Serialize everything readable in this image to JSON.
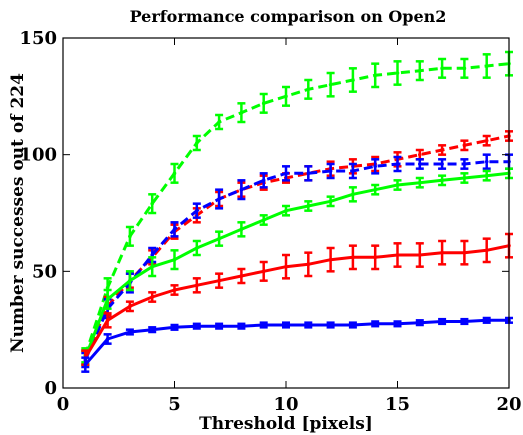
{
  "chart_data": {
    "type": "line",
    "title": "Performance comparison on Open2",
    "xlabel": "Threshold [pixels]",
    "ylabel": "Number successes out of 224",
    "xlim": [
      0,
      20
    ],
    "ylim": [
      0,
      150
    ],
    "xticks": [
      "0",
      "5",
      "10",
      "15",
      "20"
    ],
    "yticks": [
      "0",
      "50",
      "100",
      "150"
    ],
    "grid": false,
    "legend": "none",
    "x": [
      1,
      2,
      3,
      4,
      5,
      6,
      7,
      8,
      9,
      10,
      11,
      12,
      13,
      14,
      15,
      16,
      17,
      18,
      19,
      20
    ],
    "series": [
      {
        "color": "#00ff00",
        "linestyle": "dashed",
        "values": [
          14,
          43,
          65,
          79,
          92,
          105,
          114,
          118,
          122,
          125,
          128,
          130,
          132,
          134,
          135,
          136,
          137,
          137,
          138,
          139
        ],
        "errors": [
          3,
          4,
          4,
          4,
          4,
          3,
          3,
          4,
          4,
          4,
          4,
          5,
          5,
          5,
          5,
          4,
          4,
          4,
          5,
          5
        ]
      },
      {
        "color": "#ff0000",
        "linestyle": "dashed",
        "values": [
          13,
          35,
          46,
          56,
          67,
          74,
          81,
          85,
          88,
          90,
          92,
          94,
          95,
          96,
          98,
          100,
          102,
          104,
          106,
          108
        ],
        "errors": [
          3,
          4,
          3,
          3,
          3,
          3,
          3,
          3,
          3,
          2,
          3,
          3,
          3,
          3,
          3,
          2,
          2,
          2,
          2,
          2
        ]
      },
      {
        "color": "#0000ff",
        "linestyle": "dashed",
        "values": [
          12,
          34,
          45,
          57,
          68,
          76,
          81,
          85,
          89,
          92,
          92,
          93,
          93,
          95,
          96,
          96,
          96,
          96,
          97,
          97
        ],
        "errors": [
          3,
          4,
          4,
          3,
          3,
          3,
          4,
          4,
          3,
          3,
          3,
          3,
          3,
          3,
          3,
          2,
          2,
          2,
          3,
          3
        ]
      },
      {
        "color": "#00ff00",
        "linestyle": "solid",
        "values": [
          13,
          38,
          46,
          52,
          55,
          60,
          64,
          68,
          72,
          76,
          78,
          80,
          83,
          85,
          87,
          88,
          89,
          90,
          91,
          92
        ],
        "errors": [
          3,
          4,
          4,
          4,
          4,
          3,
          3,
          3,
          2,
          2,
          2,
          2,
          3,
          2,
          2,
          2,
          2,
          2,
          2,
          2
        ]
      },
      {
        "color": "#ff0000",
        "linestyle": "solid",
        "values": [
          13,
          29,
          35,
          39,
          42,
          44,
          46,
          48,
          50,
          52,
          53,
          55,
          56,
          56,
          57,
          57,
          58,
          58,
          59,
          61
        ],
        "errors": [
          3,
          3,
          2,
          2,
          2,
          3,
          3,
          3,
          4,
          5,
          5,
          5,
          5,
          5,
          5,
          5,
          5,
          5,
          5,
          5
        ]
      },
      {
        "color": "#0000ff",
        "linestyle": "solid",
        "values": [
          10,
          21,
          24,
          25,
          26,
          26.5,
          26.5,
          26.5,
          27,
          27,
          27,
          27,
          27,
          27.5,
          27.5,
          28,
          28.5,
          28.5,
          29,
          29
        ],
        "errors": [
          3,
          2,
          1,
          1,
          1,
          1,
          1,
          1,
          1,
          1,
          1,
          1,
          1,
          1,
          1,
          1,
          1,
          1,
          1,
          1
        ]
      }
    ]
  }
}
